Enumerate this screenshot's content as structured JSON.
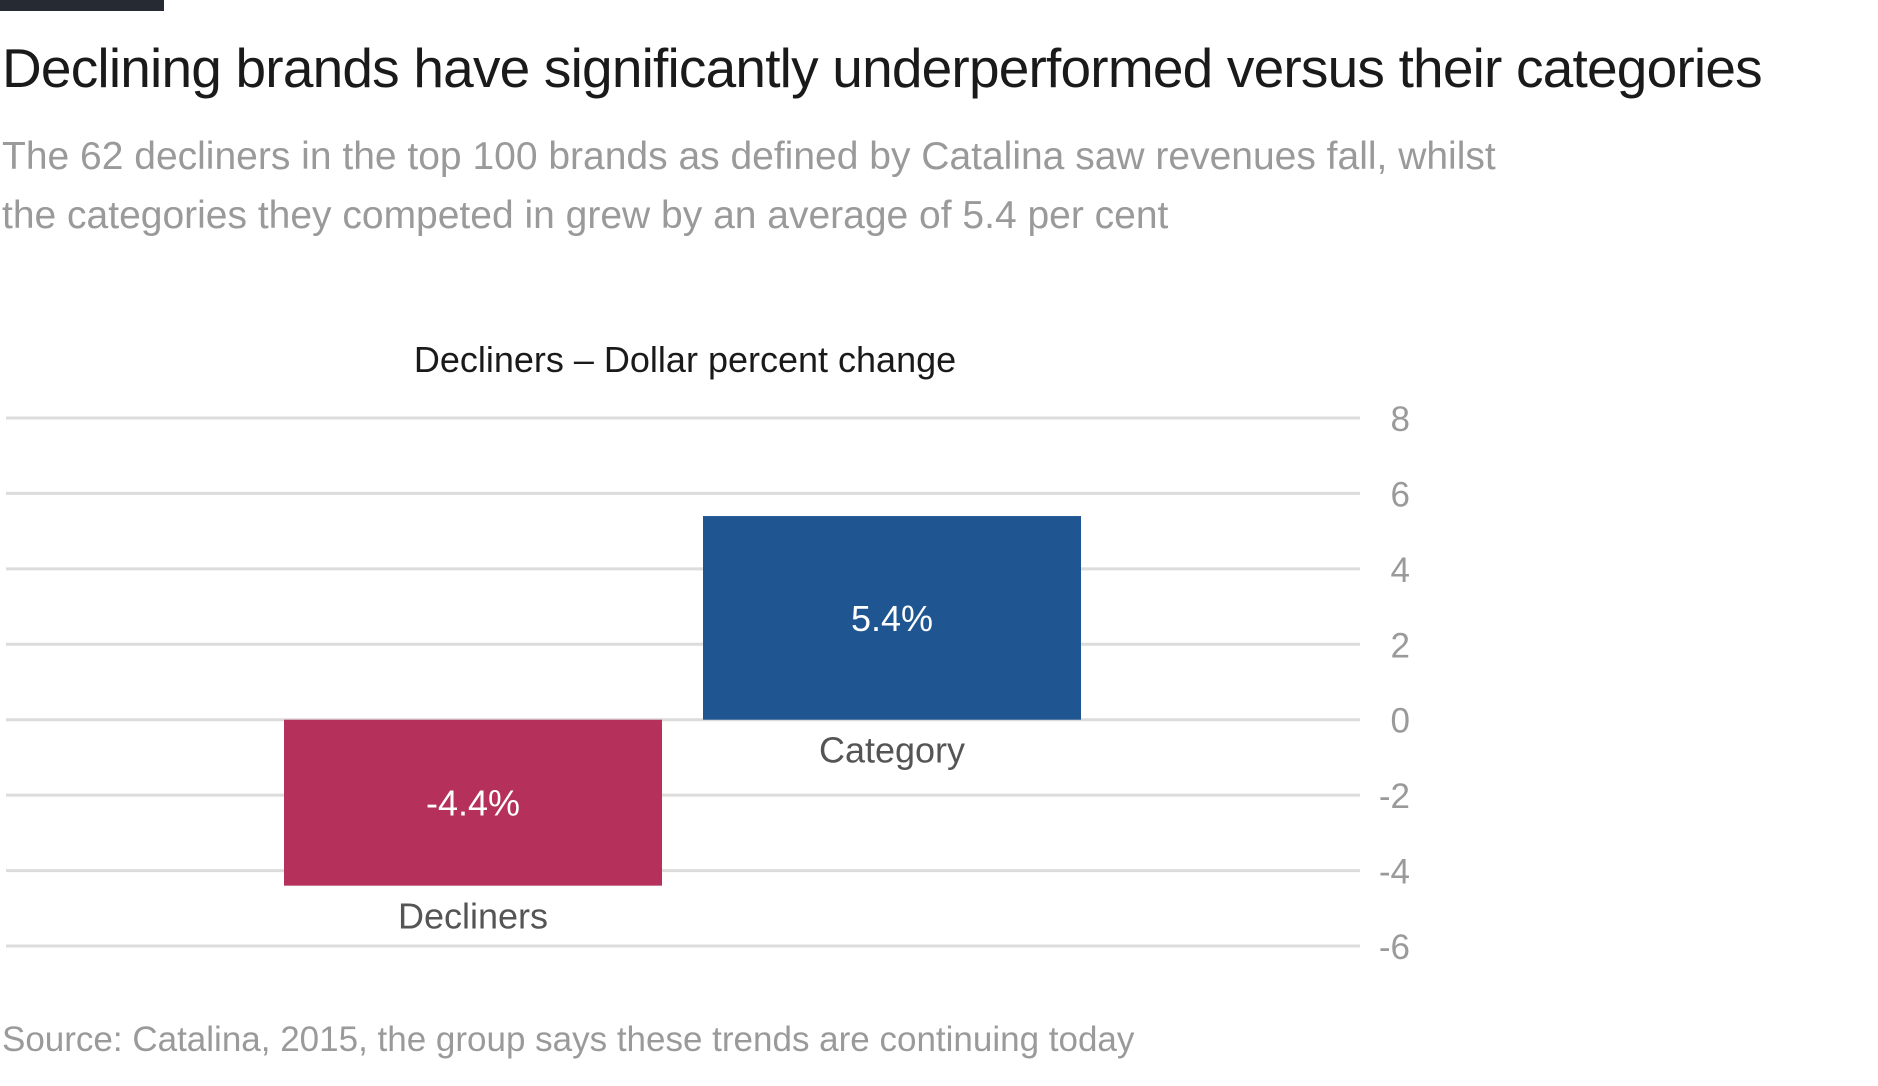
{
  "header": {
    "title": "Declining brands have significantly underperformed versus their categories",
    "subtitle_lines": [
      "The 62 decliners in the top 100 brands as defined by Catalina saw revenues fall, whilst",
      "the categories they competed in grew by an average of 5.4 per cent"
    ]
  },
  "chart_data": {
    "type": "bar",
    "title": "Decliners – Dollar percent change",
    "categories": [
      "Decliners",
      "Category"
    ],
    "values": [
      -4.4,
      5.4
    ],
    "data_labels": [
      "-4.4%",
      "5.4%"
    ],
    "colors": [
      "#b5305a",
      "#1f5591"
    ],
    "ylim": [
      -6,
      8
    ],
    "yticks": [
      8,
      6,
      4,
      2,
      0,
      -2,
      -4,
      -6
    ],
    "y_axis_side": "right",
    "grid": true,
    "xlabel": "",
    "ylabel": ""
  },
  "footer": {
    "source": "Source: Catalina, 2015, the group says these trends are continuing today"
  }
}
